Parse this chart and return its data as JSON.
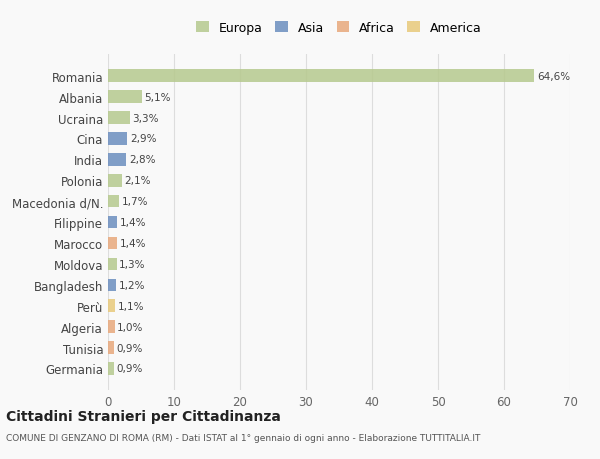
{
  "countries": [
    "Romania",
    "Albania",
    "Ucraina",
    "Cina",
    "India",
    "Polonia",
    "Macedonia d/N.",
    "Filippine",
    "Marocco",
    "Moldova",
    "Bangladesh",
    "Perù",
    "Algeria",
    "Tunisia",
    "Germania"
  ],
  "values": [
    64.6,
    5.1,
    3.3,
    2.9,
    2.8,
    2.1,
    1.7,
    1.4,
    1.4,
    1.3,
    1.2,
    1.1,
    1.0,
    0.9,
    0.9
  ],
  "labels": [
    "64,6%",
    "5,1%",
    "3,3%",
    "2,9%",
    "2,8%",
    "2,1%",
    "1,7%",
    "1,4%",
    "1,4%",
    "1,3%",
    "1,2%",
    "1,1%",
    "1,0%",
    "0,9%",
    "0,9%"
  ],
  "colors": [
    "#b5c98e",
    "#b5c98e",
    "#b5c98e",
    "#6b8ebf",
    "#6b8ebf",
    "#b5c98e",
    "#b5c98e",
    "#6b8ebf",
    "#e8a87c",
    "#b5c98e",
    "#6b8ebf",
    "#e8c97a",
    "#e8a87c",
    "#e8a87c",
    "#b5c98e"
  ],
  "legend": [
    {
      "label": "Europa",
      "color": "#b5c98e"
    },
    {
      "label": "Asia",
      "color": "#6b8ebf"
    },
    {
      "label": "Africa",
      "color": "#e8a87c"
    },
    {
      "label": "America",
      "color": "#e8c97a"
    }
  ],
  "title": "Cittadini Stranieri per Cittadinanza",
  "subtitle": "COMUNE DI GENZANO DI ROMA (RM) - Dati ISTAT al 1° gennaio di ogni anno - Elaborazione TUTTITALIA.IT",
  "xlim": [
    0,
    70
  ],
  "xticks": [
    0,
    10,
    20,
    30,
    40,
    50,
    60,
    70
  ],
  "background_color": "#f9f9f9",
  "grid_color": "#dddddd"
}
